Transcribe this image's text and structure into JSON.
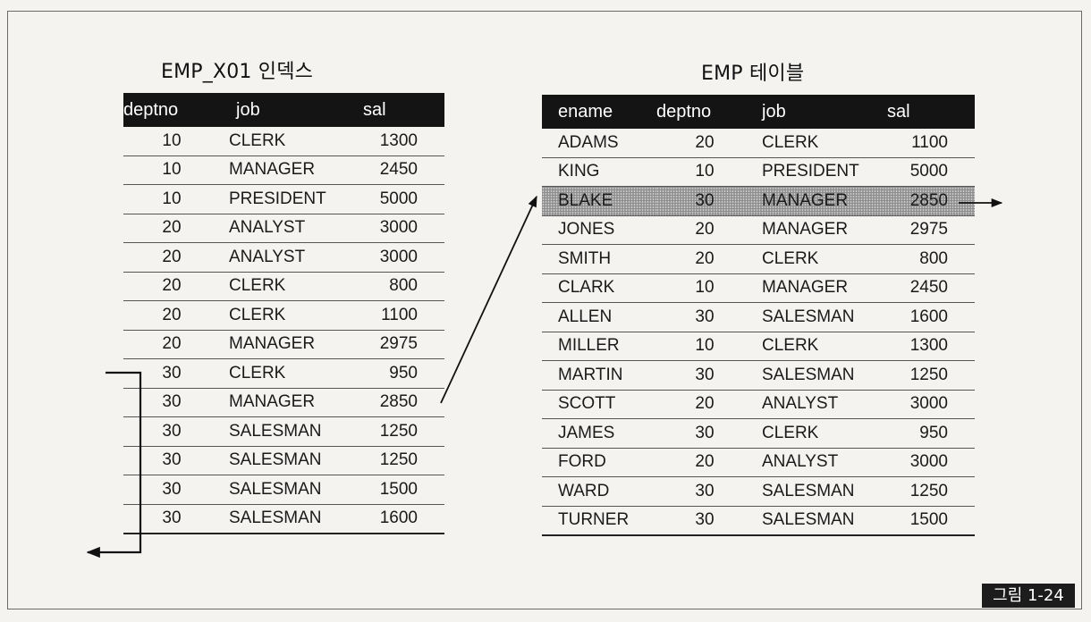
{
  "index_table": {
    "title": "EMP_X01 인덱스",
    "columns": [
      "deptno",
      "job",
      "sal"
    ],
    "rows": [
      [
        "10",
        "CLERK",
        "1300"
      ],
      [
        "10",
        "MANAGER",
        "2450"
      ],
      [
        "10",
        "PRESIDENT",
        "5000"
      ],
      [
        "20",
        "ANALYST",
        "3000"
      ],
      [
        "20",
        "ANALYST",
        "3000"
      ],
      [
        "20",
        "CLERK",
        "800"
      ],
      [
        "20",
        "CLERK",
        "1100"
      ],
      [
        "20",
        "MANAGER",
        "2975"
      ],
      [
        "30",
        "CLERK",
        "950"
      ],
      [
        "30",
        "MANAGER",
        "2850"
      ],
      [
        "30",
        "SALESMAN",
        "1250"
      ],
      [
        "30",
        "SALESMAN",
        "1250"
      ],
      [
        "30",
        "SALESMAN",
        "1500"
      ],
      [
        "30",
        "SALESMAN",
        "1600"
      ]
    ]
  },
  "emp_table": {
    "title": "EMP 테이블",
    "columns": [
      "ename",
      "deptno",
      "job",
      "sal"
    ],
    "highlighted_row": 2,
    "rows": [
      [
        "ADAMS",
        "20",
        "CLERK",
        "1100"
      ],
      [
        "KING",
        "10",
        "PRESIDENT",
        "5000"
      ],
      [
        "BLAKE",
        "30",
        "MANAGER",
        "2850"
      ],
      [
        "JONES",
        "20",
        "MANAGER",
        "2975"
      ],
      [
        "SMITH",
        "20",
        "CLERK",
        "800"
      ],
      [
        "CLARK",
        "10",
        "MANAGER",
        "2450"
      ],
      [
        "ALLEN",
        "30",
        "SALESMAN",
        "1600"
      ],
      [
        "MILLER",
        "10",
        "CLERK",
        "1300"
      ],
      [
        "MARTIN",
        "30",
        "SALESMAN",
        "1250"
      ],
      [
        "SCOTT",
        "20",
        "ANALYST",
        "3000"
      ],
      [
        "JAMES",
        "30",
        "CLERK",
        "950"
      ],
      [
        "FORD",
        "20",
        "ANALYST",
        "3000"
      ],
      [
        "WARD",
        "30",
        "SALESMAN",
        "1250"
      ],
      [
        "TURNER",
        "30",
        "SALESMAN",
        "1500"
      ]
    ]
  },
  "figure_label": "그림 1-24",
  "colors": {
    "header_bg": "#141414",
    "highlight": "#8d8d8d",
    "background": "#f4f3f0"
  }
}
